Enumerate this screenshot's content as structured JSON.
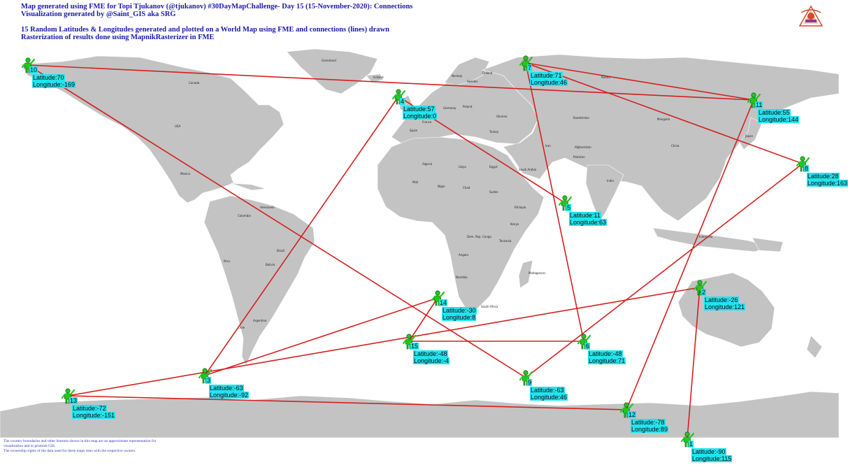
{
  "header": {
    "line1": "Map generated using FME for Topi Tjukanov (@tjukanov) #30DayMapChallenge- Day 15 (15-November-2020): Connections",
    "line2": "Visualization generated by @Saint_GIS aka SRG",
    "line3": "15 Random Latitudes & Longitudes generated and plotted on a World Map using FME and connections (lines) drawn",
    "line4": "Rasterization of results done using MapnikRasterizer in FME"
  },
  "footer": {
    "line1": "The country boundaries and other features shown in this map are an approximate representation for",
    "line2": "visualization and to promote GIS.",
    "line3": "The ownership rights of the data used for these maps rests with the respective owners."
  },
  "icons": {
    "point_marker": "person-waving-icon",
    "logo": "fme-logo-icon"
  },
  "colors": {
    "land": "#c3c3c3",
    "connection": "#d42020",
    "marker": "#22c722",
    "label_bg": "#22e4ee",
    "header_text": "#1a1aa6"
  },
  "points": [
    {
      "id": "1",
      "lat": "Latitude:-90",
      "lon": "Longitude:115"
    },
    {
      "id": "2",
      "lat": "Latitude:-26",
      "lon": "Longitude:121"
    },
    {
      "id": "3",
      "lat": "Latitude:-63",
      "lon": "Longitude:-92"
    },
    {
      "id": "4",
      "lat": "Latitude:57",
      "lon": "Longitude:0"
    },
    {
      "id": "5",
      "lat": "Latitude:11",
      "lon": "Longitude:63"
    },
    {
      "id": "6",
      "lat": "Latitude:-48",
      "lon": "Longitude:71"
    },
    {
      "id": "7",
      "lat": "Latitude:71",
      "lon": "Longitude:46"
    },
    {
      "id": "8",
      "lat": "Latitude:28",
      "lon": "Longitude:163"
    },
    {
      "id": "9",
      "lat": "Latitude:-63",
      "lon": "Longitude:46"
    },
    {
      "id": "10",
      "lat": "Latitude:70",
      "lon": "Longitude:-169"
    },
    {
      "id": "11",
      "lat": "Latitude:55",
      "lon": "Longitude:144"
    },
    {
      "id": "12",
      "lat": "Latitude:-78",
      "lon": "Longitude:89"
    },
    {
      "id": "13",
      "lat": "Latitude:-72",
      "lon": "Longitude:-151"
    },
    {
      "id": "14",
      "lat": "Latitude:-30",
      "lon": "Longitude:8"
    },
    {
      "id": "15",
      "lat": "Latitude:-48",
      "lon": "Longitude:-4"
    }
  ],
  "connections": [
    [
      "10",
      "11"
    ],
    [
      "10",
      "9"
    ],
    [
      "7",
      "11"
    ],
    [
      "7",
      "8"
    ],
    [
      "7",
      "6"
    ],
    [
      "4",
      "5"
    ],
    [
      "4",
      "3"
    ],
    [
      "8",
      "9"
    ],
    [
      "11",
      "12"
    ],
    [
      "2",
      "1"
    ],
    [
      "2",
      "13"
    ],
    [
      "3",
      "14"
    ],
    [
      "13",
      "12"
    ],
    [
      "14",
      "15"
    ],
    [
      "15",
      "6"
    ]
  ],
  "country_labels": [
    "Greenland",
    "Canada",
    "USA",
    "Mexico",
    "Brazil",
    "Peru",
    "Bolivia",
    "Argentina",
    "Chile",
    "Colombia",
    "Venezuela",
    "Russia",
    "Kazakhstan",
    "China",
    "Mongolia",
    "India",
    "Iran",
    "Saudi Arabia",
    "Egypt",
    "Libya",
    "Algeria",
    "Mali",
    "Niger",
    "Chad",
    "Sudan",
    "Ethiopia",
    "Kenya",
    "Tanzania",
    "Dem. Rep. Congo",
    "Angola",
    "Namibia",
    "South Africa",
    "Madagascar",
    "Australia",
    "Indonesia",
    "Japan",
    "Pakistan",
    "Afghanistan",
    "Turkey",
    "Iceland",
    "Norway",
    "Sweden",
    "Finland",
    "Ukraine",
    "France",
    "Spain",
    "Germany",
    "Poland"
  ]
}
